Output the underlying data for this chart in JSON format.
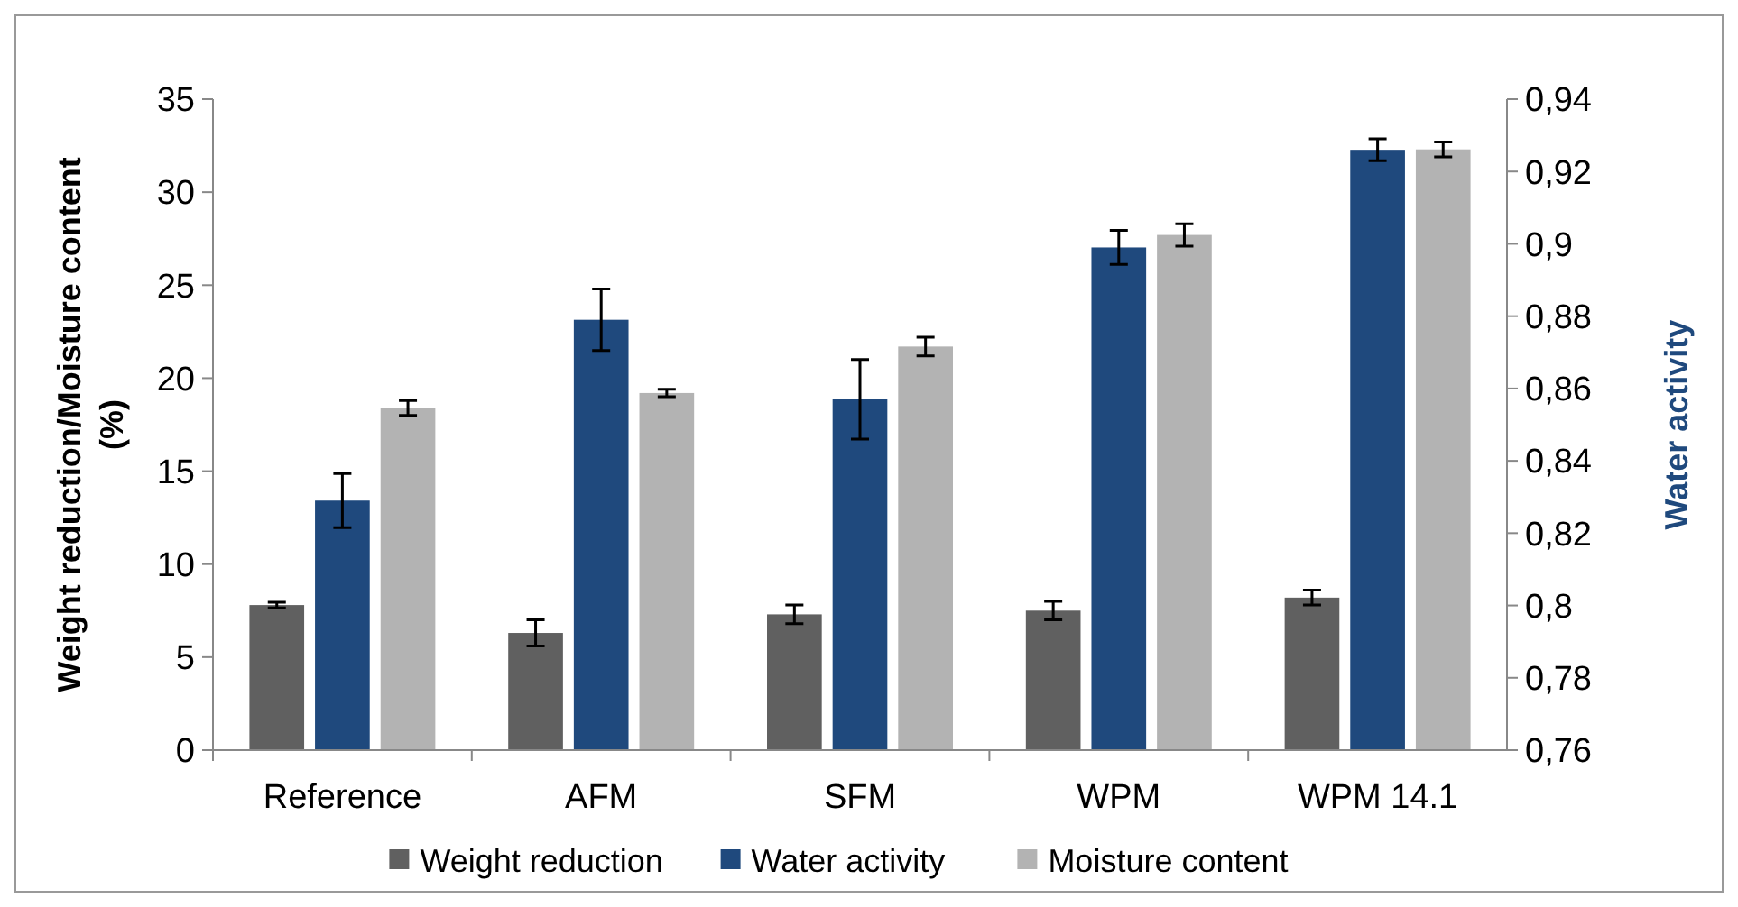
{
  "chart_data": {
    "type": "bar",
    "categories": [
      "Reference",
      "AFM",
      "SFM",
      "WPM",
      "WPM 14.1"
    ],
    "ylabel": "Weight reduction/Moisture content (%)",
    "y2label": "Water activity",
    "ylim": [
      0,
      35
    ],
    "yticks": [
      0,
      5,
      10,
      15,
      20,
      25,
      30,
      35
    ],
    "y2lim": [
      0.76,
      0.94
    ],
    "y2ticks": [
      {
        "value": 0.76,
        "label": "0,76"
      },
      {
        "value": 0.78,
        "label": "0,78"
      },
      {
        "value": 0.8,
        "label": "0,8"
      },
      {
        "value": 0.82,
        "label": "0,82"
      },
      {
        "value": 0.84,
        "label": "0,84"
      },
      {
        "value": 0.86,
        "label": "0,86"
      },
      {
        "value": 0.88,
        "label": "0,88"
      },
      {
        "value": 0.9,
        "label": "0,9"
      },
      {
        "value": 0.92,
        "label": "0,92"
      },
      {
        "value": 0.94,
        "label": "0,94"
      }
    ],
    "series": [
      {
        "name": "Weight reduction",
        "color": "#606060",
        "values": [
          7.8,
          6.3,
          7.3,
          7.5,
          8.2
        ],
        "errors": [
          0.15,
          0.7,
          0.5,
          0.5,
          0.4
        ]
      },
      {
        "name": "Water activity",
        "color": "#1f497d",
        "axis": "y2",
        "values": [
          0.829,
          0.879,
          0.857,
          0.899,
          0.926
        ],
        "errors": [
          0.0075,
          0.0085,
          0.011,
          0.0047,
          0.003
        ]
      },
      {
        "name": "Moisture content",
        "color": "#b3b3b3",
        "values": [
          18.4,
          19.2,
          21.7,
          27.7,
          32.3
        ],
        "errors": [
          0.4,
          0.2,
          0.5,
          0.6,
          0.4
        ]
      }
    ],
    "legend": "bottom",
    "grid": false
  }
}
